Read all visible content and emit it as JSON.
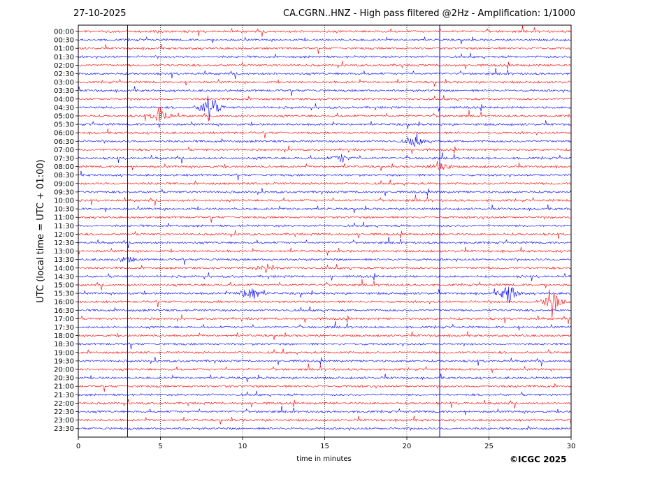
{
  "header": {
    "date": "27-10-2025",
    "title": "CA.CGRN..HNZ - High pass filtered @2Hz - Amplification: 1/1000"
  },
  "footer": {
    "credit": "©ICGC 2025"
  },
  "chart_data": {
    "type": "line",
    "xlabel": "time in minutes",
    "ylabel": "UTC (local time = UTC + 01:00)",
    "xlim": [
      0,
      30
    ],
    "xticks": [
      0,
      5,
      10,
      15,
      20,
      25,
      30
    ],
    "grid": "vertical dotted at 5, 10, 15, 20, 25 minutes",
    "colors": {
      "even_rows": "#ff0000",
      "odd_rows": "#0000ff"
    },
    "rows": [
      "00:00",
      "00:30",
      "01:00",
      "01:30",
      "02:00",
      "02:30",
      "03:00",
      "03:30",
      "04:00",
      "04:30",
      "05:00",
      "05:30",
      "06:00",
      "06:30",
      "07:00",
      "07:30",
      "08:00",
      "08:30",
      "09:00",
      "09:30",
      "10:00",
      "10:30",
      "11:00",
      "11:30",
      "12:00",
      "12:30",
      "13:00",
      "13:30",
      "14:00",
      "14:30",
      "15:00",
      "15:30",
      "16:00",
      "16:30",
      "17:00",
      "17:30",
      "18:00",
      "18:30",
      "19:00",
      "19:30",
      "20:00",
      "20:30",
      "21:00",
      "21:30",
      "22:00",
      "22:30",
      "23:00",
      "23:30"
    ],
    "events": [
      {
        "row": 15,
        "minute": 16.0,
        "amplitude": 0.5
      },
      {
        "row": 27,
        "minute": 3.0,
        "amplitude": 0.4
      },
      {
        "row": 28,
        "minute": 11.5,
        "amplitude": 0.6
      },
      {
        "row": 31,
        "minute": 10.5,
        "amplitude": 1.3
      },
      {
        "row": 31,
        "minute": 26.2,
        "amplitude": 1.4
      },
      {
        "row": 32,
        "minute": 28.8,
        "amplitude": 2.0
      },
      {
        "row": 9,
        "minute": 8.0,
        "amplitude": 2.0
      },
      {
        "row": 10,
        "minute": 5.0,
        "amplitude": 1.2
      },
      {
        "row": 13,
        "minute": 20.5,
        "amplitude": 0.7
      },
      {
        "row": 16,
        "minute": 22.0,
        "amplitude": 0.8
      }
    ]
  }
}
